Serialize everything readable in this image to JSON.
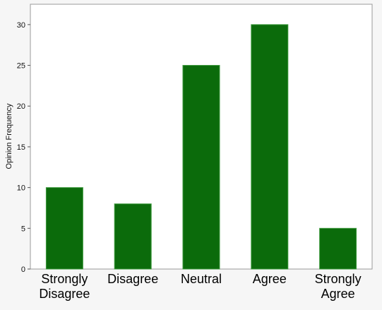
{
  "chart_data": {
    "type": "bar",
    "title": "",
    "xlabel": "",
    "ylabel": "Opinion Frequency",
    "categories": [
      [
        "Strongly",
        "Disagree"
      ],
      [
        "Disagree"
      ],
      [
        "Neutral"
      ],
      [
        "Agree"
      ],
      [
        "Strongly",
        "Agree"
      ]
    ],
    "values": [
      10,
      8,
      25,
      30,
      5
    ],
    "ylim": [
      0,
      32.5
    ],
    "yticks": [
      "0",
      "5",
      "10",
      "15",
      "20",
      "25",
      "30"
    ],
    "grid": false,
    "bar_color": "#0b6b0b",
    "bar_edge_color": "#3f9a3f"
  }
}
